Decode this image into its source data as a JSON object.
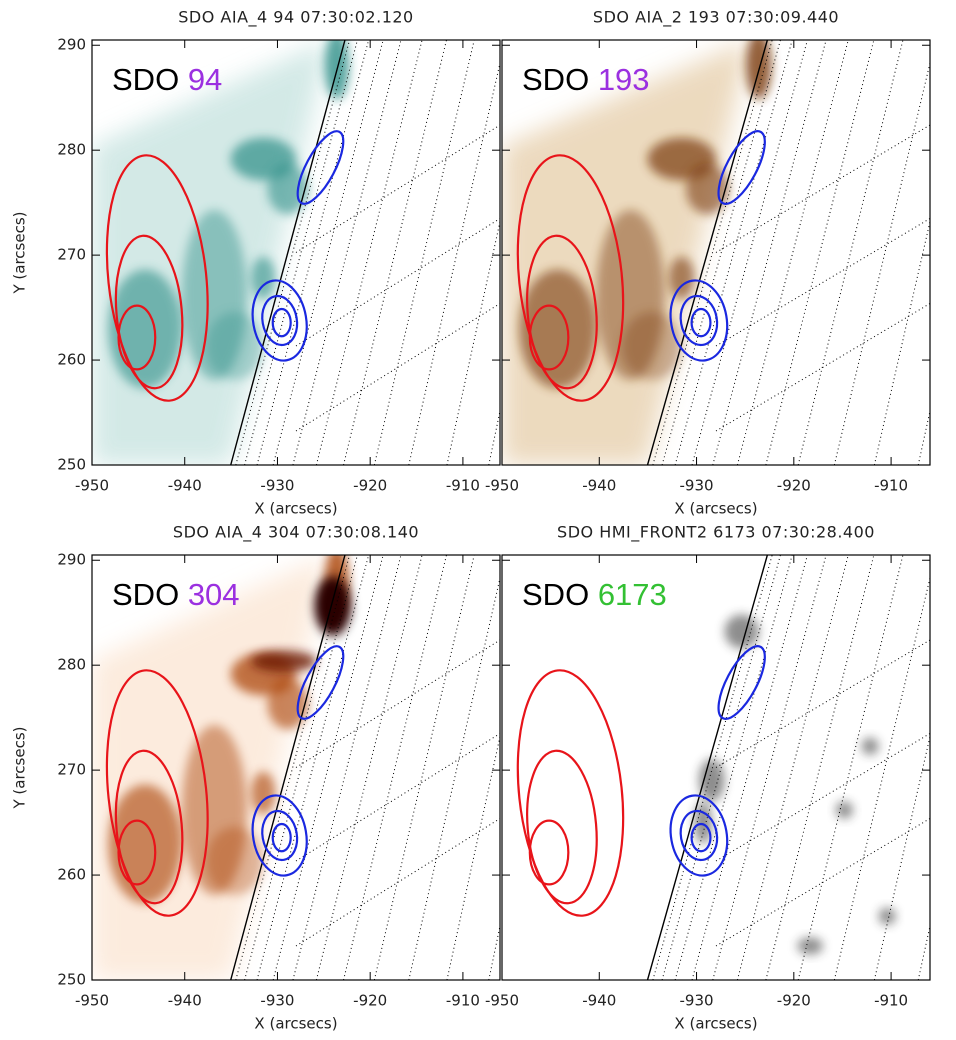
{
  "chart_data": [
    {
      "type": "image",
      "title": "SDO AIA_4 94 07:30:02.120",
      "label": "SDO",
      "label_band": "94",
      "label_color": "#9b30e0",
      "tint": "#2f8f88",
      "tint_light": "#cfe7e4",
      "xlabel": "X (arcsecs)",
      "ylabel": "Y (arcsecs)",
      "xlim": [
        -950,
        -906
      ],
      "ylim": [
        250,
        290.5
      ],
      "xticks": [
        -950,
        -940,
        -930,
        -920,
        -910
      ],
      "yticks": [
        250,
        260,
        270,
        280,
        290
      ],
      "ytick_labels": true
    },
    {
      "type": "image",
      "title": "SDO AIA_2 193 07:30:09.440",
      "label": "SDO",
      "label_band": "193",
      "label_color": "#9b30e0",
      "tint": "#7a3a10",
      "tint_light": "#ead6b8",
      "xlabel": "X (arcsecs)",
      "xlim": [
        -950,
        -906
      ],
      "ylim": [
        250,
        290.5
      ],
      "xticks": [
        -950,
        -940,
        -930,
        -920,
        -910
      ],
      "yticks": [
        250,
        260,
        270,
        280,
        290
      ],
      "ytick_labels": false
    },
    {
      "type": "image",
      "title": "SDO AIA_4 304 07:30:08.140",
      "label": "SDO",
      "label_band": "304",
      "label_color": "#9b30e0",
      "tint": "#a83c00",
      "tint_light": "#fbe3cf",
      "xlabel": "X (arcsecs)",
      "ylabel": "Y (arcsecs)",
      "xlim": [
        -950,
        -906
      ],
      "ylim": [
        250,
        290.5
      ],
      "xticks": [
        -950,
        -940,
        -930,
        -920,
        -910
      ],
      "yticks": [
        250,
        260,
        270,
        280,
        290
      ],
      "ytick_labels": true
    },
    {
      "type": "image",
      "title": "SDO HMI_FRONT2 6173 07:30:28.400",
      "label": "SDO",
      "label_band": "6173",
      "label_color": "#33c033",
      "tint": "#303030",
      "tint_light": "#e6e6e6",
      "xlabel": "X (arcsecs)",
      "xlim": [
        -950,
        -906
      ],
      "ylim": [
        250,
        290.5
      ],
      "xticks": [
        -950,
        -940,
        -930,
        -920,
        -910
      ],
      "yticks": [
        250,
        260,
        270,
        280,
        290
      ],
      "ytick_labels": false
    }
  ]
}
